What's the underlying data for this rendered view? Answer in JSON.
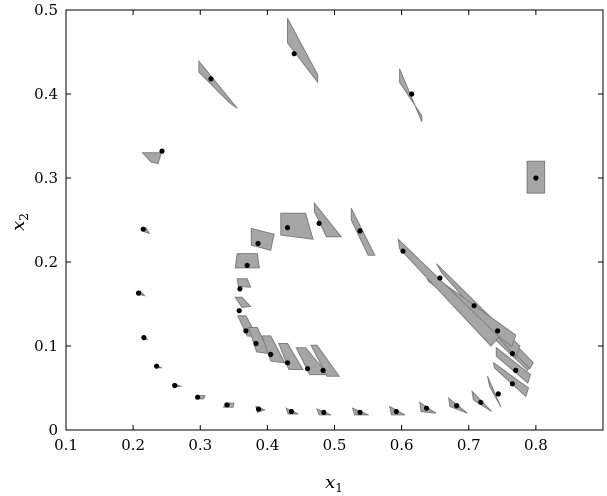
{
  "chart_data": {
    "type": "scatter",
    "title": "",
    "xlabel_base": "x",
    "xlabel_sub": "1",
    "ylabel_base": "x",
    "ylabel_sub": "2",
    "xlim": [
      0.1,
      0.9
    ],
    "ylim": [
      0,
      0.5
    ],
    "xticks": [
      0.1,
      0.2,
      0.3,
      0.4,
      0.5,
      0.6,
      0.7,
      0.8
    ],
    "xtick_labels": [
      "0.1",
      "0.2",
      "0.3",
      "0.4",
      "0.5",
      "0.6",
      "0.7",
      "0.8"
    ],
    "yticks": [
      0,
      0.1,
      0.2,
      0.3,
      0.4,
      0.5
    ],
    "ytick_labels": [
      "0",
      "0.1",
      "0.2",
      "0.3",
      "0.4",
      "0.5"
    ],
    "grid": false,
    "marker_color": "#000000",
    "region_fill": "#a6a6a6",
    "region_edge": "#7f7f7f",
    "points": [
      {
        "x": 0.8,
        "y": 0.3,
        "region": [
          [
            0.787,
            0.32
          ],
          [
            0.813,
            0.32
          ],
          [
            0.813,
            0.282
          ],
          [
            0.787,
            0.282
          ]
        ]
      },
      {
        "x": 0.44,
        "y": 0.448,
        "region": [
          [
            0.43,
            0.49
          ],
          [
            0.475,
            0.423
          ],
          [
            0.475,
            0.414
          ],
          [
            0.43,
            0.461
          ]
        ]
      },
      {
        "x": 0.615,
        "y": 0.4,
        "region": [
          [
            0.597,
            0.43
          ],
          [
            0.63,
            0.367
          ],
          [
            0.63,
            0.374
          ],
          [
            0.597,
            0.414
          ]
        ]
      },
      {
        "x": 0.316,
        "y": 0.418,
        "region": [
          [
            0.298,
            0.439
          ],
          [
            0.355,
            0.383
          ],
          [
            0.343,
            0.39
          ],
          [
            0.298,
            0.426
          ]
        ]
      },
      {
        "x": 0.243,
        "y": 0.332,
        "region": [
          [
            0.214,
            0.33
          ],
          [
            0.242,
            0.33
          ],
          [
            0.237,
            0.317
          ],
          [
            0.227,
            0.319
          ]
        ]
      },
      {
        "x": 0.215,
        "y": 0.239,
        "region": [
          [
            0.219,
            0.241
          ],
          [
            0.224,
            0.234
          ],
          [
            0.217,
            0.236
          ]
        ]
      },
      {
        "x": 0.208,
        "y": 0.163,
        "region": [
          [
            0.211,
            0.165
          ],
          [
            0.217,
            0.16
          ],
          [
            0.211,
            0.161
          ]
        ]
      },
      {
        "x": 0.216,
        "y": 0.11,
        "region": [
          [
            0.216,
            0.11
          ],
          [
            0.222,
            0.108
          ],
          [
            0.217,
            0.108
          ]
        ]
      },
      {
        "x": 0.235,
        "y": 0.076,
        "region": [
          [
            0.235,
            0.077
          ],
          [
            0.243,
            0.074
          ],
          [
            0.235,
            0.074
          ]
        ]
      },
      {
        "x": 0.262,
        "y": 0.053,
        "region": [
          [
            0.262,
            0.055
          ],
          [
            0.271,
            0.052
          ],
          [
            0.261,
            0.051
          ]
        ]
      },
      {
        "x": 0.296,
        "y": 0.039,
        "region": [
          [
            0.295,
            0.041
          ],
          [
            0.307,
            0.041
          ],
          [
            0.305,
            0.037
          ],
          [
            0.294,
            0.037
          ]
        ]
      },
      {
        "x": 0.34,
        "y": 0.03,
        "region": [
          [
            0.337,
            0.032
          ],
          [
            0.35,
            0.032
          ],
          [
            0.349,
            0.027
          ],
          [
            0.335,
            0.027
          ]
        ]
      },
      {
        "x": 0.387,
        "y": 0.025,
        "region": [
          [
            0.383,
            0.028
          ],
          [
            0.396,
            0.024
          ],
          [
            0.385,
            0.021
          ]
        ]
      },
      {
        "x": 0.436,
        "y": 0.022,
        "region": [
          [
            0.428,
            0.026
          ],
          [
            0.446,
            0.019
          ],
          [
            0.431,
            0.019
          ]
        ]
      },
      {
        "x": 0.484,
        "y": 0.021,
        "region": [
          [
            0.474,
            0.025
          ],
          [
            0.495,
            0.018
          ],
          [
            0.477,
            0.018
          ]
        ]
      },
      {
        "x": 0.538,
        "y": 0.021,
        "region": [
          [
            0.527,
            0.026
          ],
          [
            0.551,
            0.018
          ],
          [
            0.53,
            0.018
          ]
        ]
      },
      {
        "x": 0.592,
        "y": 0.022,
        "region": [
          [
            0.582,
            0.028
          ],
          [
            0.605,
            0.018
          ],
          [
            0.585,
            0.018
          ]
        ]
      },
      {
        "x": 0.637,
        "y": 0.026,
        "region": [
          [
            0.627,
            0.033
          ],
          [
            0.651,
            0.02
          ],
          [
            0.629,
            0.022
          ]
        ]
      },
      {
        "x": 0.682,
        "y": 0.029,
        "region": [
          [
            0.67,
            0.038
          ],
          [
            0.698,
            0.02
          ],
          [
            0.672,
            0.028
          ]
        ]
      },
      {
        "x": 0.718,
        "y": 0.033,
        "region": [
          [
            0.705,
            0.046
          ],
          [
            0.734,
            0.022
          ],
          [
            0.707,
            0.036
          ]
        ]
      },
      {
        "x": 0.744,
        "y": 0.043,
        "region": [
          [
            0.728,
            0.064
          ],
          [
            0.748,
            0.027
          ],
          [
            0.731,
            0.052
          ]
        ]
      },
      {
        "x": 0.765,
        "y": 0.055,
        "region": [
          [
            0.737,
            0.08
          ],
          [
            0.789,
            0.05
          ],
          [
            0.785,
            0.04
          ],
          [
            0.738,
            0.074
          ]
        ]
      },
      {
        "x": 0.77,
        "y": 0.071,
        "region": [
          [
            0.741,
            0.098
          ],
          [
            0.792,
            0.066
          ],
          [
            0.788,
            0.056
          ],
          [
            0.741,
            0.088
          ]
        ]
      },
      {
        "x": 0.765,
        "y": 0.091,
        "region": [
          [
            0.737,
            0.124
          ],
          [
            0.792,
            0.083
          ],
          [
            0.788,
            0.071
          ],
          [
            0.739,
            0.108
          ]
        ]
      },
      {
        "x": 0.743,
        "y": 0.118,
        "region": [
          [
            0.7,
            0.16
          ],
          [
            0.796,
            0.08
          ],
          [
            0.791,
            0.073
          ],
          [
            0.703,
            0.146
          ]
        ]
      },
      {
        "x": 0.708,
        "y": 0.148,
        "region": [
          [
            0.652,
            0.198
          ],
          [
            0.776,
            0.1
          ],
          [
            0.77,
            0.087
          ],
          [
            0.66,
            0.187
          ]
        ]
      },
      {
        "x": 0.657,
        "y": 0.181,
        "region": [
          [
            0.632,
            0.192
          ],
          [
            0.77,
            0.113
          ],
          [
            0.764,
            0.099
          ],
          [
            0.64,
            0.177
          ]
        ]
      },
      {
        "x": 0.602,
        "y": 0.213,
        "region": [
          [
            0.595,
            0.227
          ],
          [
            0.745,
            0.111
          ],
          [
            0.733,
            0.1
          ],
          [
            0.597,
            0.216
          ]
        ]
      },
      {
        "x": 0.538,
        "y": 0.237,
        "region": [
          [
            0.525,
            0.264
          ],
          [
            0.56,
            0.208
          ],
          [
            0.55,
            0.208
          ],
          [
            0.525,
            0.25
          ]
        ]
      },
      {
        "x": 0.477,
        "y": 0.246,
        "region": [
          [
            0.47,
            0.27
          ],
          [
            0.51,
            0.23
          ],
          [
            0.488,
            0.23
          ],
          [
            0.47,
            0.26
          ]
        ]
      },
      {
        "x": 0.43,
        "y": 0.241,
        "region": [
          [
            0.42,
            0.258
          ],
          [
            0.457,
            0.258
          ],
          [
            0.468,
            0.227
          ],
          [
            0.42,
            0.232
          ]
        ]
      },
      {
        "x": 0.386,
        "y": 0.222,
        "region": [
          [
            0.376,
            0.24
          ],
          [
            0.41,
            0.233
          ],
          [
            0.405,
            0.214
          ],
          [
            0.376,
            0.22
          ]
        ]
      },
      {
        "x": 0.37,
        "y": 0.196,
        "region": [
          [
            0.355,
            0.21
          ],
          [
            0.385,
            0.21
          ],
          [
            0.388,
            0.193
          ],
          [
            0.352,
            0.193
          ]
        ]
      },
      {
        "x": 0.359,
        "y": 0.168,
        "region": [
          [
            0.355,
            0.18
          ],
          [
            0.37,
            0.18
          ],
          [
            0.375,
            0.17
          ],
          [
            0.357,
            0.171
          ]
        ]
      },
      {
        "x": 0.358,
        "y": 0.142,
        "region": [
          [
            0.352,
            0.158
          ],
          [
            0.362,
            0.158
          ],
          [
            0.375,
            0.147
          ],
          [
            0.362,
            0.146
          ]
        ]
      },
      {
        "x": 0.368,
        "y": 0.118,
        "region": [
          [
            0.356,
            0.136
          ],
          [
            0.368,
            0.136
          ],
          [
            0.385,
            0.111
          ],
          [
            0.37,
            0.112
          ]
        ]
      },
      {
        "x": 0.383,
        "y": 0.103,
        "region": [
          [
            0.372,
            0.122
          ],
          [
            0.385,
            0.122
          ],
          [
            0.403,
            0.091
          ],
          [
            0.384,
            0.093
          ]
        ]
      },
      {
        "x": 0.405,
        "y": 0.09,
        "region": [
          [
            0.392,
            0.112
          ],
          [
            0.405,
            0.112
          ],
          [
            0.426,
            0.08
          ],
          [
            0.405,
            0.082
          ]
        ]
      },
      {
        "x": 0.43,
        "y": 0.08,
        "region": [
          [
            0.417,
            0.103
          ],
          [
            0.43,
            0.103
          ],
          [
            0.453,
            0.072
          ],
          [
            0.432,
            0.072
          ]
        ]
      },
      {
        "x": 0.46,
        "y": 0.073,
        "region": [
          [
            0.443,
            0.098
          ],
          [
            0.457,
            0.098
          ],
          [
            0.49,
            0.066
          ],
          [
            0.463,
            0.066
          ]
        ]
      },
      {
        "x": 0.483,
        "y": 0.071,
        "region": [
          [
            0.465,
            0.101
          ],
          [
            0.474,
            0.101
          ],
          [
            0.507,
            0.064
          ],
          [
            0.489,
            0.064
          ]
        ]
      }
    ]
  }
}
